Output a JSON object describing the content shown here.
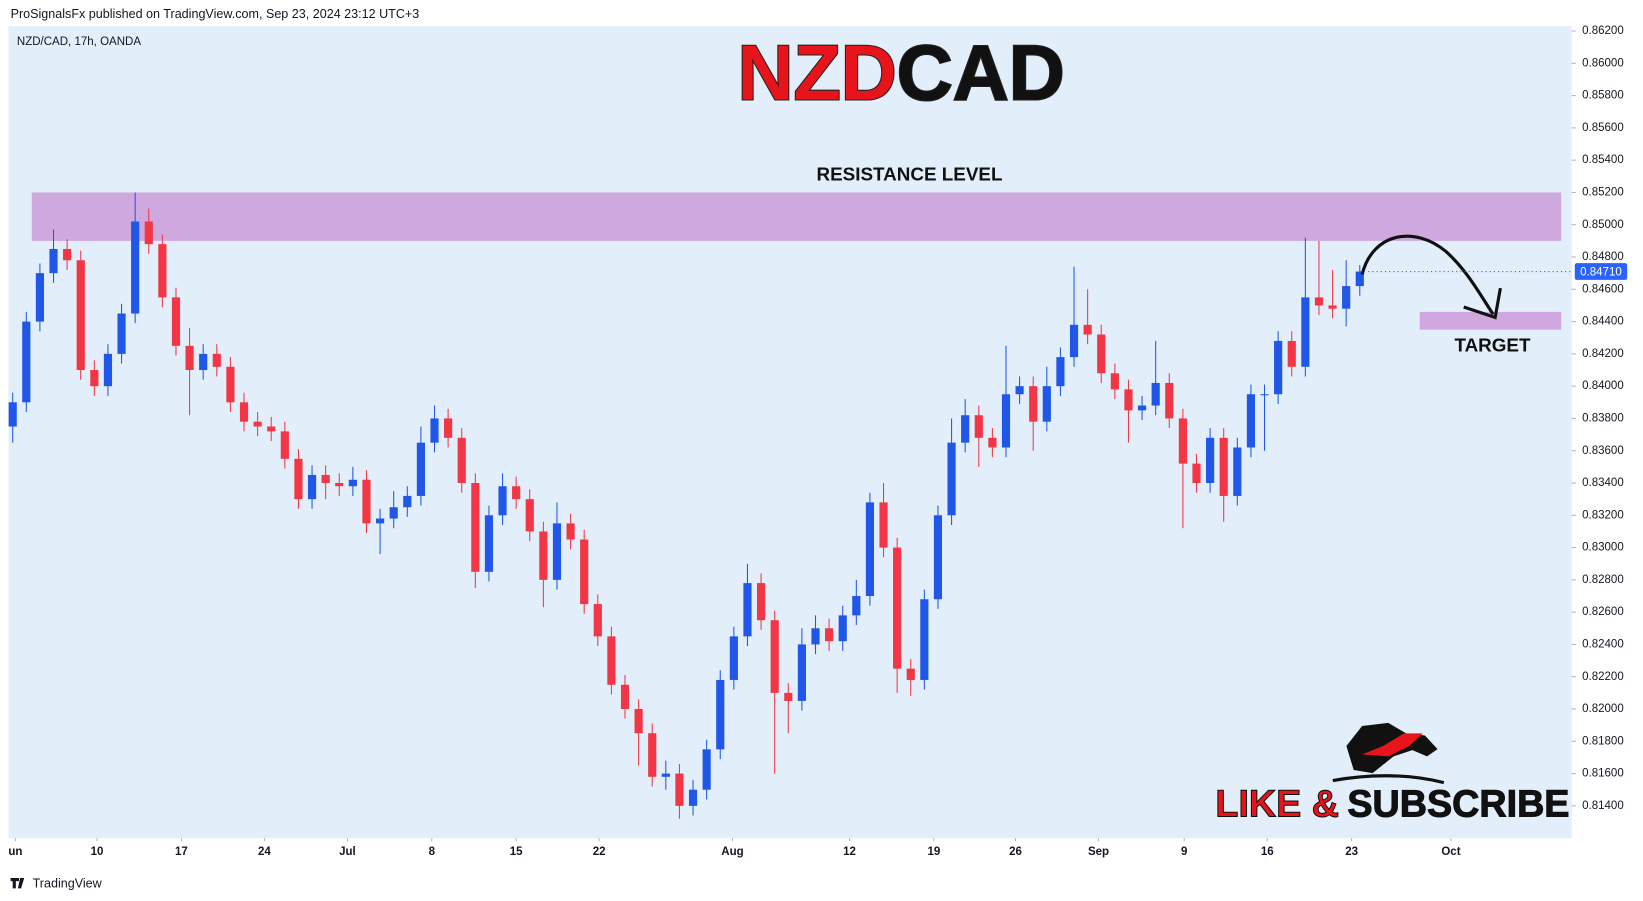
{
  "header": "ProSignalsFx published on TradingView.com, Sep 23, 2024 23:12 UTC+3",
  "footer": "TradingView",
  "cta": [
    "LIKE &",
    "SUBSCRIBE"
  ],
  "chart_data": {
    "type": "candlestick",
    "symbol": "NZD/CAD, 17h, OANDA",
    "title_parts": [
      {
        "text": "NZD",
        "color": "#e8141b"
      },
      {
        "text": "CAD",
        "color": "#111111"
      }
    ],
    "up_color": "#2057e8",
    "down_color": "#f23645",
    "xlim": [
      0,
      113.8
    ],
    "xticks": [
      {
        "value": 0.2,
        "label": "un"
      },
      {
        "value": 6.2,
        "label": "10"
      },
      {
        "value": 12.4,
        "label": "17"
      },
      {
        "value": 18.5,
        "label": "24"
      },
      {
        "value": 24.6,
        "label": "Jul"
      },
      {
        "value": 30.8,
        "label": "8"
      },
      {
        "value": 37,
        "label": "15"
      },
      {
        "value": 43.1,
        "label": "22"
      },
      {
        "value": 52.9,
        "label": "Aug"
      },
      {
        "value": 61.5,
        "label": "12"
      },
      {
        "value": 67.7,
        "label": "19"
      },
      {
        "value": 73.7,
        "label": "26"
      },
      {
        "value": 79.8,
        "label": "Sep"
      },
      {
        "value": 86.1,
        "label": "9"
      },
      {
        "value": 92.2,
        "label": "16"
      },
      {
        "value": 98.4,
        "label": "23"
      },
      {
        "value": 105.7,
        "label": "Oct"
      }
    ],
    "ylim": [
      0.812,
      0.8623
    ],
    "yticks": [
      {
        "value": 0.862,
        "label": "0.86200"
      },
      {
        "value": 0.86,
        "label": "0.86000"
      },
      {
        "value": 0.858,
        "label": "0.85800"
      },
      {
        "value": 0.856,
        "label": "0.85600"
      },
      {
        "value": 0.854,
        "label": "0.85400"
      },
      {
        "value": 0.852,
        "label": "0.85200"
      },
      {
        "value": 0.85,
        "label": "0.85000"
      },
      {
        "value": 0.848,
        "label": "0.84800"
      },
      {
        "value": 0.846,
        "label": "0.84600"
      },
      {
        "value": 0.844,
        "label": "0.84400"
      },
      {
        "value": 0.842,
        "label": "0.84200"
      },
      {
        "value": 0.84,
        "label": "0.84000"
      },
      {
        "value": 0.838,
        "label": "0.83800"
      },
      {
        "value": 0.836,
        "label": "0.83600"
      },
      {
        "value": 0.834,
        "label": "0.83400"
      },
      {
        "value": 0.832,
        "label": "0.83200"
      },
      {
        "value": 0.83,
        "label": "0.83000"
      },
      {
        "value": 0.828,
        "label": "0.82800"
      },
      {
        "value": 0.826,
        "label": "0.82600"
      },
      {
        "value": 0.824,
        "label": "0.82400"
      },
      {
        "value": 0.822,
        "label": "0.82200"
      },
      {
        "value": 0.82,
        "label": "0.82000"
      },
      {
        "value": 0.818,
        "label": "0.81800"
      },
      {
        "value": 0.816,
        "label": "0.81600"
      },
      {
        "value": 0.814,
        "label": "0.81400"
      }
    ],
    "last_price": {
      "value": 0.8471,
      "label": "0.84710",
      "color": "#2962ff"
    },
    "zones": [
      {
        "label": "RESISTANCE LEVEL",
        "from": 0.849,
        "to": 0.852,
        "x_from": 1.4,
        "x_to": 113.8,
        "color": "#cfa8e0"
      },
      {
        "label": "TARGET",
        "from": 0.8435,
        "to": 0.8446,
        "x_from": 103.4,
        "x_to": 113.8,
        "color": "#cfa8e0"
      }
    ],
    "open": [
      0.8375,
      0.839,
      0.844,
      0.847,
      0.8485,
      0.8478,
      0.841,
      0.84,
      0.842,
      0.8445,
      0.8502,
      0.8488,
      0.8455,
      0.8425,
      0.841,
      0.842,
      0.8412,
      0.839,
      0.8378,
      0.8375,
      0.8372,
      0.8355,
      0.833,
      0.8345,
      0.834,
      0.8338,
      0.8342,
      0.8315,
      0.8318,
      0.8325,
      0.8332,
      0.8365,
      0.838,
      0.8368,
      0.834,
      0.8285,
      0.832,
      0.8338,
      0.833,
      0.831,
      0.828,
      0.8315,
      0.8305,
      0.8265,
      0.8245,
      0.8215,
      0.82,
      0.8185,
      0.8158,
      0.816,
      0.814,
      0.815,
      0.8175,
      0.8218,
      0.8245,
      0.8278,
      0.8255,
      0.821,
      0.8205,
      0.824,
      0.825,
      0.8242,
      0.8258,
      0.827,
      0.8328,
      0.83,
      0.8225,
      0.8218,
      0.8268,
      0.832,
      0.8365,
      0.8382,
      0.8368,
      0.8362,
      0.8395,
      0.84,
      0.8378,
      0.84,
      0.8418,
      0.8438,
      0.8432,
      0.8408,
      0.8398,
      0.8385,
      0.8388,
      0.8402,
      0.838,
      0.8352,
      0.834,
      0.8368,
      0.8332,
      0.8362,
      0.8395,
      0.8395,
      0.8428,
      0.8412,
      0.8455,
      0.845,
      0.8448,
      0.8462
    ],
    "high": [
      0.8396,
      0.8446,
      0.8476,
      0.8497,
      0.8491,
      0.8484,
      0.8416,
      0.8426,
      0.8451,
      0.852,
      0.851,
      0.8494,
      0.8461,
      0.8436,
      0.8426,
      0.8426,
      0.8418,
      0.8396,
      0.8384,
      0.8381,
      0.8378,
      0.8361,
      0.8351,
      0.8351,
      0.8346,
      0.835,
      0.8348,
      0.8324,
      0.8335,
      0.8338,
      0.8375,
      0.8388,
      0.8386,
      0.8374,
      0.8346,
      0.8326,
      0.8346,
      0.8344,
      0.8336,
      0.8316,
      0.8328,
      0.8321,
      0.8311,
      0.8271,
      0.8251,
      0.8221,
      0.8206,
      0.8191,
      0.8168,
      0.8166,
      0.8156,
      0.8181,
      0.8224,
      0.8251,
      0.829,
      0.8284,
      0.8261,
      0.8216,
      0.825,
      0.8258,
      0.8256,
      0.8264,
      0.828,
      0.8334,
      0.834,
      0.8306,
      0.8231,
      0.8274,
      0.8326,
      0.838,
      0.8392,
      0.8388,
      0.8374,
      0.8425,
      0.8406,
      0.8406,
      0.8412,
      0.8424,
      0.8474,
      0.846,
      0.8438,
      0.8414,
      0.8404,
      0.8394,
      0.8428,
      0.8408,
      0.8386,
      0.8358,
      0.8374,
      0.8374,
      0.8368,
      0.8401,
      0.8401,
      0.8434,
      0.8434,
      0.8492,
      0.849,
      0.8472,
      0.8478,
      0.8475
    ],
    "low": [
      0.8365,
      0.8384,
      0.8434,
      0.8464,
      0.8472,
      0.8404,
      0.8394,
      0.8394,
      0.8414,
      0.8439,
      0.8482,
      0.8449,
      0.8419,
      0.8382,
      0.8404,
      0.8406,
      0.8384,
      0.8372,
      0.8369,
      0.8366,
      0.8349,
      0.8324,
      0.8324,
      0.833,
      0.8332,
      0.8332,
      0.8309,
      0.8296,
      0.8312,
      0.8319,
      0.8326,
      0.8359,
      0.8362,
      0.8334,
      0.8275,
      0.8279,
      0.8314,
      0.8324,
      0.8304,
      0.8263,
      0.8274,
      0.8299,
      0.8259,
      0.8239,
      0.8209,
      0.8194,
      0.8165,
      0.8152,
      0.815,
      0.8132,
      0.8134,
      0.8144,
      0.8169,
      0.8212,
      0.8239,
      0.8249,
      0.816,
      0.8185,
      0.8199,
      0.8234,
      0.8236,
      0.8236,
      0.8252,
      0.8264,
      0.8294,
      0.821,
      0.8208,
      0.8212,
      0.8262,
      0.8314,
      0.8359,
      0.835,
      0.8356,
      0.8356,
      0.8389,
      0.836,
      0.8372,
      0.8394,
      0.8412,
      0.8426,
      0.8402,
      0.8392,
      0.8365,
      0.8379,
      0.8382,
      0.8374,
      0.8312,
      0.8334,
      0.8334,
      0.8316,
      0.8326,
      0.8356,
      0.836,
      0.8389,
      0.8406,
      0.8406,
      0.8444,
      0.8442,
      0.8437,
      0.8456
    ],
    "close": [
      0.839,
      0.844,
      0.847,
      0.8485,
      0.8478,
      0.841,
      0.84,
      0.842,
      0.8445,
      0.8502,
      0.8488,
      0.8455,
      0.8425,
      0.841,
      0.842,
      0.8412,
      0.839,
      0.8378,
      0.8375,
      0.8372,
      0.8355,
      0.833,
      0.8345,
      0.834,
      0.8338,
      0.8342,
      0.8315,
      0.8318,
      0.8325,
      0.8332,
      0.8365,
      0.838,
      0.8368,
      0.834,
      0.8285,
      0.832,
      0.8338,
      0.833,
      0.831,
      0.828,
      0.8315,
      0.8305,
      0.8265,
      0.8245,
      0.8215,
      0.82,
      0.8185,
      0.8158,
      0.816,
      0.814,
      0.815,
      0.8175,
      0.8218,
      0.8245,
      0.8278,
      0.8255,
      0.821,
      0.8205,
      0.824,
      0.825,
      0.8242,
      0.8258,
      0.827,
      0.8328,
      0.83,
      0.8225,
      0.8218,
      0.8268,
      0.832,
      0.8365,
      0.8382,
      0.8368,
      0.8362,
      0.8395,
      0.84,
      0.8378,
      0.84,
      0.8418,
      0.8438,
      0.8432,
      0.8408,
      0.8398,
      0.8385,
      0.8388,
      0.8402,
      0.838,
      0.8352,
      0.834,
      0.8368,
      0.8332,
      0.8362,
      0.8395,
      0.8395,
      0.8428,
      0.8412,
      0.8455,
      0.845,
      0.8448,
      0.8462,
      0.8471
    ]
  }
}
